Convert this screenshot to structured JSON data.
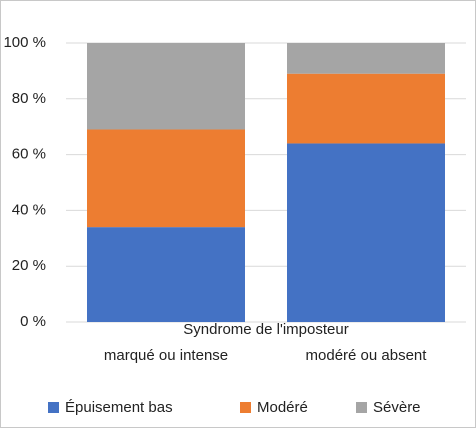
{
  "chart_data": {
    "type": "stacked_bar",
    "x_label": "Syndrome de l'imposteur",
    "categories": [
      "marqué ou intense",
      "modéré ou absent"
    ],
    "series": [
      {
        "name": "Épuisement bas",
        "color": "#4472c4",
        "values": [
          34,
          64
        ]
      },
      {
        "name": "Modéré",
        "color": "#ed7d31",
        "values": [
          35,
          25
        ]
      },
      {
        "name": "Sévère",
        "color": "#a5a5a5",
        "values": [
          31,
          11
        ]
      }
    ],
    "ylim": [
      0,
      100
    ],
    "yticks": [
      {
        "value": 0,
        "label": "0 %"
      },
      {
        "value": 20,
        "label": "20 %"
      },
      {
        "value": 40,
        "label": "40 %"
      },
      {
        "value": 60,
        "label": "60 %"
      },
      {
        "value": 80,
        "label": "80 %"
      },
      {
        "value": 100,
        "label": "100 %"
      }
    ],
    "grid": true,
    "legend": "bottom"
  }
}
